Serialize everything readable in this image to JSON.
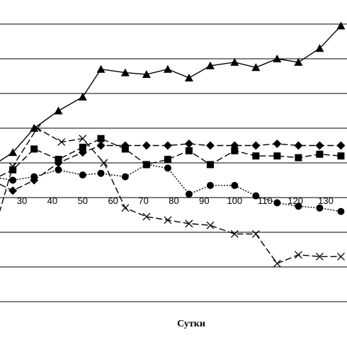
{
  "chart_data": {
    "type": "line",
    "title": "",
    "xlabel": "Сутки",
    "ylabel": "",
    "x_ticks": [
      30,
      40,
      50,
      60,
      70,
      80,
      90,
      100,
      110,
      120,
      130
    ],
    "xlim": [
      24.5,
      138.3
    ],
    "ylim": [
      0,
      8
    ],
    "grid": "horizontal",
    "legend": "none",
    "series": [
      {
        "marker": "triangle",
        "line": "solid",
        "x": [
          20,
          27,
          34,
          42,
          50,
          56,
          64,
          71,
          78,
          85,
          92,
          100,
          107,
          114,
          121,
          128,
          135
        ],
        "y": [
          3.9,
          4.3,
          5.0,
          5.5,
          5.9,
          6.7,
          6.6,
          6.55,
          6.7,
          6.45,
          6.8,
          6.9,
          6.75,
          7.0,
          6.9,
          7.3,
          7.95
        ]
      },
      {
        "marker": "diamond",
        "line": "dashed",
        "x": [
          20,
          27,
          34,
          42,
          50,
          56,
          64,
          71,
          78,
          85,
          92,
          100,
          107,
          114,
          121,
          128,
          135
        ],
        "y": [
          3.5,
          3.2,
          3.5,
          4.0,
          4.3,
          4.5,
          4.5,
          4.5,
          4.5,
          4.55,
          4.5,
          4.5,
          4.5,
          4.55,
          4.5,
          4.5,
          4.5
        ]
      },
      {
        "marker": "square",
        "line": "dashed",
        "x": [
          20,
          27,
          34,
          42,
          50,
          56,
          64,
          71,
          78,
          85,
          92,
          100,
          107,
          114,
          121,
          128,
          135
        ],
        "y": [
          3.5,
          3.8,
          4.4,
          4.1,
          4.45,
          4.7,
          4.4,
          3.95,
          4.1,
          4.35,
          3.95,
          4.35,
          4.2,
          4.2,
          4.15,
          4.25,
          4.2
        ]
      },
      {
        "marker": "circle",
        "line": "dotted",
        "x": [
          20,
          27,
          34,
          42,
          50,
          56,
          64,
          71,
          78,
          85,
          92,
          100,
          107,
          114,
          121,
          128,
          135
        ],
        "y": [
          3.6,
          3.5,
          3.6,
          3.8,
          3.65,
          3.7,
          3.6,
          3.95,
          3.85,
          3.1,
          3.35,
          3.35,
          3.05,
          2.85,
          2.75,
          2.7,
          2.6
        ]
      },
      {
        "marker": "x",
        "line": "dashed",
        "x": [
          20,
          27,
          35,
          43,
          50,
          57,
          64,
          71,
          78,
          85,
          92,
          100,
          107,
          114,
          121,
          128,
          135
        ],
        "y": [
          1.8,
          3.9,
          5.0,
          4.6,
          4.7,
          4.0,
          2.7,
          2.45,
          2.35,
          2.25,
          2.2,
          1.95,
          1.95,
          1.1,
          1.35,
          1.3,
          1.3
        ]
      }
    ]
  }
}
